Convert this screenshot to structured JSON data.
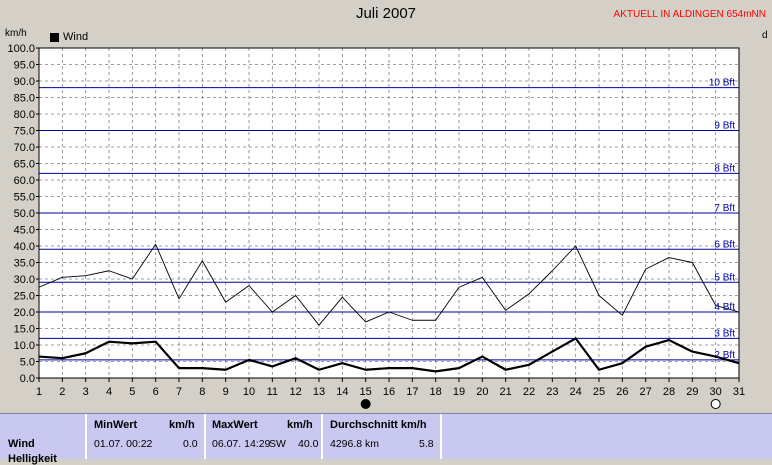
{
  "header": {
    "title": "Juli 2007",
    "station": "AKTUELL IN ALDINGEN 654mNN",
    "unit_left": "km/h",
    "unit_right": "d"
  },
  "colors": {
    "background": "#d4d0c8",
    "plot_background": "#ffffff",
    "beaufort_line": "#0000aa",
    "series": "#000000",
    "station_text": "#ff0000",
    "table_background": "#c8c8f0"
  },
  "chart_data": {
    "type": "line",
    "x": [
      1,
      2,
      3,
      4,
      5,
      6,
      7,
      8,
      9,
      10,
      11,
      12,
      13,
      14,
      15,
      16,
      17,
      18,
      19,
      20,
      21,
      22,
      23,
      24,
      25,
      26,
      27,
      28,
      29,
      30,
      31
    ],
    "xlim": [
      1,
      31
    ],
    "ylim": [
      0,
      100
    ],
    "y_ticks": [
      "0.0",
      "5.0",
      "10.0",
      "15.0",
      "20.0",
      "25.0",
      "30.0",
      "35.0",
      "40.0",
      "45.0",
      "50.0",
      "55.0",
      "60.0",
      "65.0",
      "70.0",
      "75.0",
      "80.0",
      "85.0",
      "90.0",
      "95.0",
      "100.0"
    ],
    "grid": true,
    "legend": {
      "position": "top-left",
      "label": "Wind"
    },
    "series": [
      {
        "name": "Wind",
        "style": "thick",
        "values": [
          6.5,
          6.0,
          7.5,
          11.0,
          10.5,
          11.0,
          3.0,
          3.0,
          2.5,
          5.5,
          3.5,
          6.0,
          2.5,
          4.5,
          2.5,
          3.0,
          3.0,
          2.0,
          3.0,
          6.5,
          2.5,
          4.0,
          8.0,
          12.0,
          2.5,
          4.5,
          9.5,
          11.5,
          8.0,
          6.5,
          4.5
        ]
      },
      {
        "name": "",
        "style": "thin",
        "values": [
          27.5,
          30.5,
          31.0,
          32.5,
          30.0,
          40.5,
          24.0,
          35.5,
          23.0,
          28.0,
          20.0,
          25.0,
          16.0,
          24.5,
          17.0,
          20.0,
          17.5,
          17.5,
          27.5,
          30.5,
          20.5,
          25.5,
          32.5,
          40.0,
          25.0,
          19.0,
          33.0,
          36.5,
          35.0,
          22.0,
          20.0
        ]
      }
    ],
    "beaufort": [
      {
        "label": "2 Bft",
        "value": 5.5
      },
      {
        "label": "3 Bft",
        "value": 12.0
      },
      {
        "label": "4 Bft",
        "value": 20.0
      },
      {
        "label": "5 Bft",
        "value": 29.0
      },
      {
        "label": "6 Bft",
        "value": 39.0
      },
      {
        "label": "7 Bft",
        "value": 50.0
      },
      {
        "label": "8 Bft",
        "value": 62.0
      },
      {
        "label": "9 Bft",
        "value": 75.0
      },
      {
        "label": "10 Bft",
        "value": 88.0
      }
    ],
    "moon_markers": [
      {
        "day": 15,
        "phase": "new"
      },
      {
        "day": 30,
        "phase": "full"
      }
    ]
  },
  "table": {
    "headers": {
      "min_label": "MinWert",
      "min_unit": "km/h",
      "max_label": "MaxWert",
      "max_unit": "km/h",
      "avg_label": "Durchschnitt km/h"
    },
    "row_label": "Wind",
    "row_label2": "Helligkeit",
    "min_date": "01.07.  00:22",
    "min_value": "0.0",
    "max_date": "06.07.  14:29",
    "max_dir": "SW",
    "max_value": "40.0",
    "avg_distance": "4296.8 km",
    "avg_value": "5.8"
  }
}
